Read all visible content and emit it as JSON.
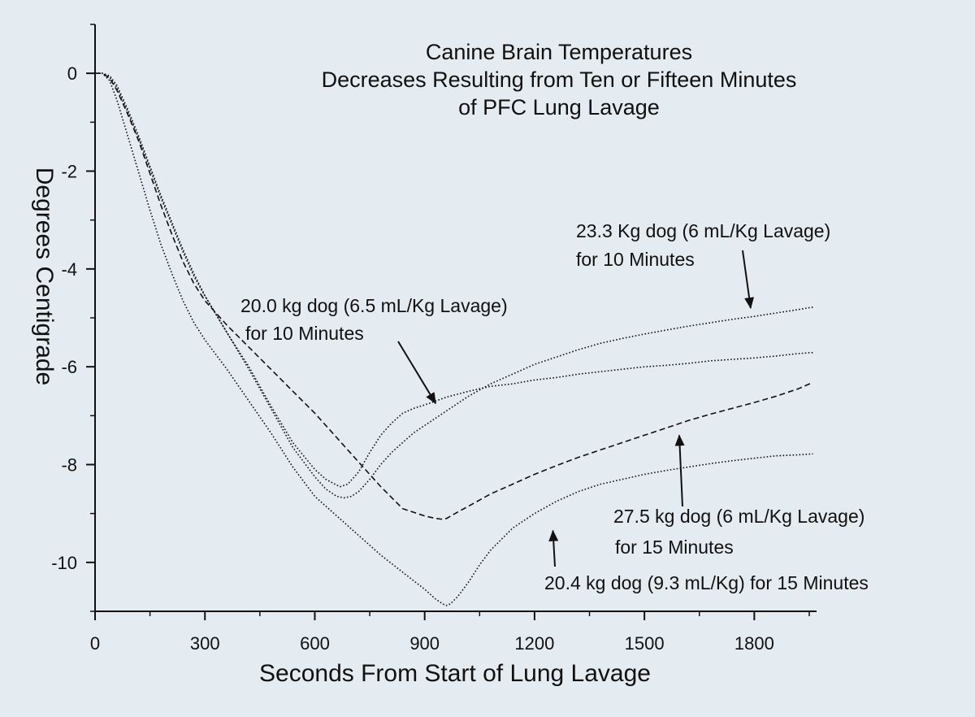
{
  "colors": {
    "background": "#e4ebf1",
    "ink": "#111111"
  },
  "chart_data": {
    "type": "line",
    "title_lines": [
      "Canine Brain Temperatures",
      "Decreases Resulting from Ten or Fifteen Minutes",
      "of PFC Lung Lavage"
    ],
    "xlabel": "Seconds From Start of Lung Lavage",
    "ylabel": "Degrees Centigrade",
    "xlim": [
      0,
      1970
    ],
    "ylim": [
      -11,
      1
    ],
    "x_ticks": [
      0,
      300,
      600,
      900,
      1200,
      1500,
      1800
    ],
    "x_tick_labels": [
      "0",
      "300",
      "600",
      "900",
      "1200",
      "1500",
      "1800"
    ],
    "y_ticks": [
      0,
      -2,
      -4,
      -6,
      -8,
      -10
    ],
    "y_tick_labels": [
      "0",
      "-2",
      "-4",
      "-6",
      "-8",
      "-10"
    ],
    "grid": false,
    "legend": "none",
    "series": [
      {
        "key": "s20_0",
        "dash": "dotted",
        "x": [
          0,
          20,
          40,
          60,
          90,
          120,
          150,
          180,
          210,
          240,
          270,
          300,
          360,
          420,
          480,
          540,
          600,
          630,
          660,
          670,
          690,
          720,
          750,
          780,
          810,
          840,
          870,
          900,
          960,
          1020,
          1080,
          1140,
          1200,
          1260,
          1320,
          1380,
          1440,
          1500,
          1560,
          1620,
          1680,
          1740,
          1800,
          1860,
          1920,
          1960
        ],
        "y": [
          0,
          0,
          -0.08,
          -0.3,
          -0.8,
          -1.35,
          -1.95,
          -2.55,
          -3.1,
          -3.65,
          -4.15,
          -4.55,
          -5.3,
          -6.0,
          -6.8,
          -7.55,
          -8.1,
          -8.3,
          -8.42,
          -8.45,
          -8.4,
          -8.15,
          -7.75,
          -7.4,
          -7.15,
          -6.95,
          -6.85,
          -6.78,
          -6.62,
          -6.5,
          -6.4,
          -6.35,
          -6.27,
          -6.22,
          -6.15,
          -6.1,
          -6.05,
          -6.0,
          -5.97,
          -5.93,
          -5.88,
          -5.85,
          -5.82,
          -5.78,
          -5.73,
          -5.71
        ]
      },
      {
        "key": "s23_3",
        "dash": "dotted",
        "x": [
          0,
          20,
          40,
          60,
          90,
          120,
          150,
          180,
          210,
          240,
          270,
          300,
          360,
          420,
          480,
          540,
          600,
          630,
          660,
          680,
          700,
          720,
          750,
          780,
          810,
          840,
          870,
          900,
          960,
          1020,
          1080,
          1140,
          1200,
          1260,
          1320,
          1380,
          1440,
          1500,
          1560,
          1620,
          1680,
          1740,
          1800,
          1860,
          1920,
          1960
        ],
        "y": [
          0,
          0,
          -0.05,
          -0.25,
          -0.75,
          -1.3,
          -1.9,
          -2.5,
          -3.05,
          -3.6,
          -4.1,
          -4.55,
          -5.3,
          -6.05,
          -6.85,
          -7.65,
          -8.25,
          -8.5,
          -8.65,
          -8.68,
          -8.65,
          -8.55,
          -8.3,
          -8.0,
          -7.75,
          -7.55,
          -7.35,
          -7.2,
          -6.9,
          -6.6,
          -6.35,
          -6.15,
          -5.95,
          -5.8,
          -5.65,
          -5.52,
          -5.42,
          -5.33,
          -5.25,
          -5.17,
          -5.1,
          -5.03,
          -4.97,
          -4.9,
          -4.83,
          -4.78
        ]
      },
      {
        "key": "s27_5",
        "dash": "dashed",
        "x": [
          0,
          20,
          40,
          60,
          90,
          120,
          150,
          180,
          210,
          240,
          270,
          300,
          360,
          420,
          480,
          540,
          600,
          660,
          720,
          780,
          840,
          900,
          930,
          950,
          960,
          990,
          1020,
          1080,
          1140,
          1200,
          1260,
          1320,
          1380,
          1440,
          1500,
          1560,
          1620,
          1680,
          1740,
          1800,
          1860,
          1920,
          1960
        ],
        "y": [
          0,
          0,
          -0.1,
          -0.35,
          -0.85,
          -1.4,
          -2.05,
          -2.7,
          -3.3,
          -3.85,
          -4.3,
          -4.65,
          -5.15,
          -5.6,
          -6.05,
          -6.5,
          -6.95,
          -7.45,
          -7.95,
          -8.45,
          -8.9,
          -9.05,
          -9.1,
          -9.12,
          -9.1,
          -8.97,
          -8.85,
          -8.6,
          -8.4,
          -8.2,
          -8.02,
          -7.85,
          -7.7,
          -7.55,
          -7.4,
          -7.25,
          -7.1,
          -6.97,
          -6.85,
          -6.73,
          -6.6,
          -6.45,
          -6.32
        ]
      },
      {
        "key": "s20_4",
        "dash": "dotted",
        "x": [
          0,
          20,
          40,
          60,
          90,
          120,
          150,
          180,
          210,
          240,
          270,
          300,
          360,
          420,
          480,
          540,
          600,
          660,
          720,
          780,
          840,
          900,
          930,
          950,
          960,
          970,
          990,
          1020,
          1050,
          1080,
          1140,
          1200,
          1260,
          1320,
          1380,
          1440,
          1500,
          1560,
          1620,
          1680,
          1740,
          1800,
          1860,
          1920,
          1960
        ],
        "y": [
          0,
          0,
          -0.15,
          -0.55,
          -1.3,
          -2.05,
          -2.8,
          -3.5,
          -4.1,
          -4.65,
          -5.1,
          -5.45,
          -6.05,
          -6.7,
          -7.35,
          -8.05,
          -8.65,
          -9.05,
          -9.45,
          -9.85,
          -10.2,
          -10.55,
          -10.75,
          -10.85,
          -10.88,
          -10.85,
          -10.7,
          -10.4,
          -10.05,
          -9.75,
          -9.3,
          -9.0,
          -8.75,
          -8.55,
          -8.4,
          -8.3,
          -8.2,
          -8.12,
          -8.05,
          -7.98,
          -7.92,
          -7.87,
          -7.82,
          -7.8,
          -7.78
        ]
      }
    ],
    "annotations": [
      {
        "key": "a20_0",
        "lines": [
          "20.0 kg dog (6.5 mL/Kg Lavage)",
          "for 10 Minutes"
        ],
        "target": [
          930,
          -6.75
        ]
      },
      {
        "key": "a23_3",
        "lines": [
          "23.3 Kg dog (6 mL/Kg Lavage)",
          "for 10 Minutes"
        ],
        "target": [
          1790,
          -4.8
        ]
      },
      {
        "key": "a27_5",
        "lines": [
          "27.5 kg dog (6 mL/Kg Lavage)",
          "for 15 Minutes"
        ],
        "target": [
          1595,
          -7.4
        ]
      },
      {
        "key": "a20_4",
        "lines": [
          "20.4 kg dog (9.3 mL/Kg) for 15 Minutes"
        ],
        "target": [
          1250,
          -9.35
        ]
      }
    ]
  }
}
